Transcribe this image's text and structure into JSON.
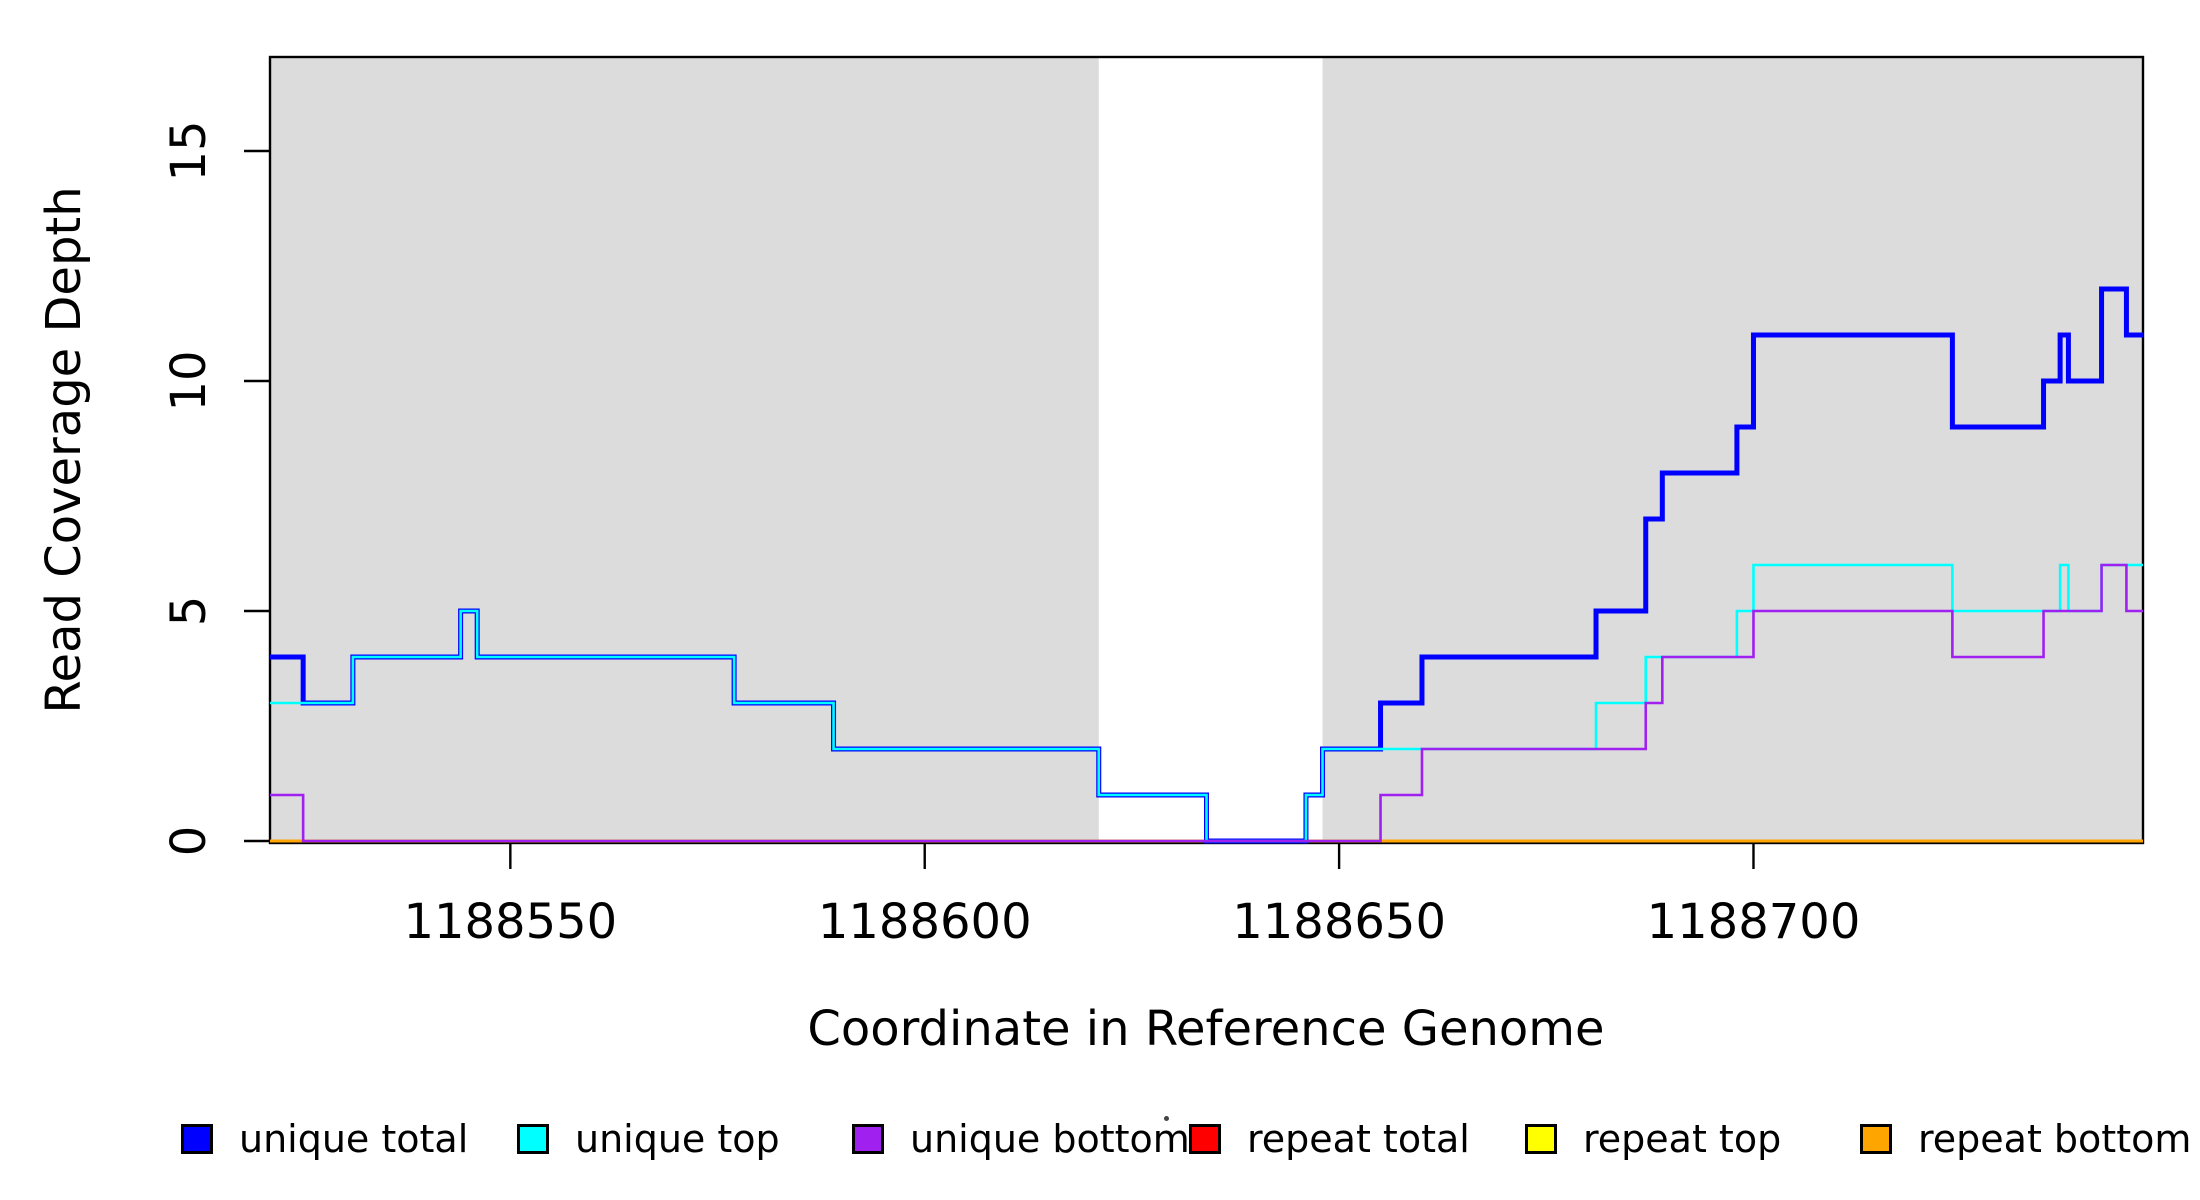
{
  "figure": {
    "xlabel": "Coordinate in Reference Genome",
    "ylabel": "Read Coverage Depth"
  },
  "chart_data": {
    "type": "line",
    "subtype": "step-after",
    "title": "",
    "xlabel": "Coordinate in Reference Genome",
    "ylabel": "Read Coverage Depth",
    "xlim": [
      1188521,
      1188747
    ],
    "ylim": [
      0,
      17
    ],
    "x_ticks": [
      1188550,
      1188600,
      1188650,
      1188700
    ],
    "y_ticks": [
      0,
      5,
      10,
      15
    ],
    "grid": false,
    "legend_position": "bottom",
    "background_shading": {
      "color": "#DCDCDC",
      "regions": [
        [
          1188521,
          1188621
        ],
        [
          1188648,
          1188747
        ]
      ]
    },
    "series": [
      {
        "name": "repeat total",
        "color": "#FF0000",
        "line_width": 3,
        "steps": [
          [
            1188521,
            0
          ],
          [
            1188747,
            0
          ]
        ]
      },
      {
        "name": "repeat top",
        "color": "#FFFF00",
        "line_width": 3,
        "steps": [
          [
            1188521,
            0
          ],
          [
            1188747,
            0
          ]
        ]
      },
      {
        "name": "repeat bottom",
        "color": "#FFA500",
        "line_width": 3,
        "steps": [
          [
            1188521,
            0
          ],
          [
            1188747,
            0
          ]
        ]
      },
      {
        "name": "unique total",
        "color": "#0000FF",
        "line_width": 5,
        "steps": [
          [
            1188521,
            4
          ],
          [
            1188525,
            3
          ],
          [
            1188531,
            4
          ],
          [
            1188544,
            5
          ],
          [
            1188546,
            4
          ],
          [
            1188577,
            3
          ],
          [
            1188589,
            2
          ],
          [
            1188621,
            1
          ],
          [
            1188634,
            0
          ],
          [
            1188646,
            1
          ],
          [
            1188648,
            2
          ],
          [
            1188655,
            3
          ],
          [
            1188660,
            4
          ],
          [
            1188681,
            5
          ],
          [
            1188687,
            7
          ],
          [
            1188689,
            8
          ],
          [
            1188698,
            9
          ],
          [
            1188700,
            11
          ],
          [
            1188724,
            9
          ],
          [
            1188735,
            10
          ],
          [
            1188737,
            11
          ],
          [
            1188738,
            10
          ],
          [
            1188742,
            12
          ],
          [
            1188745,
            11
          ],
          [
            1188747,
            11
          ]
        ]
      },
      {
        "name": "unique top",
        "color": "#00FFFF",
        "line_width": 2.6,
        "steps": [
          [
            1188521,
            3
          ],
          [
            1188531,
            4
          ],
          [
            1188544,
            5
          ],
          [
            1188546,
            4
          ],
          [
            1188577,
            3
          ],
          [
            1188589,
            2
          ],
          [
            1188621,
            1
          ],
          [
            1188634,
            0
          ],
          [
            1188646,
            1
          ],
          [
            1188648,
            2
          ],
          [
            1188681,
            3
          ],
          [
            1188687,
            4
          ],
          [
            1188698,
            5
          ],
          [
            1188700,
            6
          ],
          [
            1188724,
            5
          ],
          [
            1188737,
            6
          ],
          [
            1188738,
            5
          ],
          [
            1188742,
            6
          ],
          [
            1188747,
            6
          ]
        ]
      },
      {
        "name": "unique bottom",
        "color": "#A020F0",
        "line_width": 2.6,
        "steps": [
          [
            1188521,
            1
          ],
          [
            1188525,
            0
          ],
          [
            1188655,
            1
          ],
          [
            1188660,
            2
          ],
          [
            1188687,
            3
          ],
          [
            1188689,
            4
          ],
          [
            1188700,
            5
          ],
          [
            1188724,
            4
          ],
          [
            1188735,
            5
          ],
          [
            1188742,
            6
          ],
          [
            1188745,
            5
          ],
          [
            1188747,
            5
          ]
        ]
      }
    ],
    "legend": [
      {
        "label": "unique total",
        "color": "#0000FF"
      },
      {
        "label": "unique top",
        "color": "#00FFFF"
      },
      {
        "label": "unique bottom",
        "color": "#A020F0"
      },
      {
        "label": "repeat total",
        "color": "#FF0000"
      },
      {
        "label": "repeat top",
        "color": "#FFFF00"
      },
      {
        "label": "repeat bottom",
        "color": "#FFA500"
      }
    ]
  }
}
